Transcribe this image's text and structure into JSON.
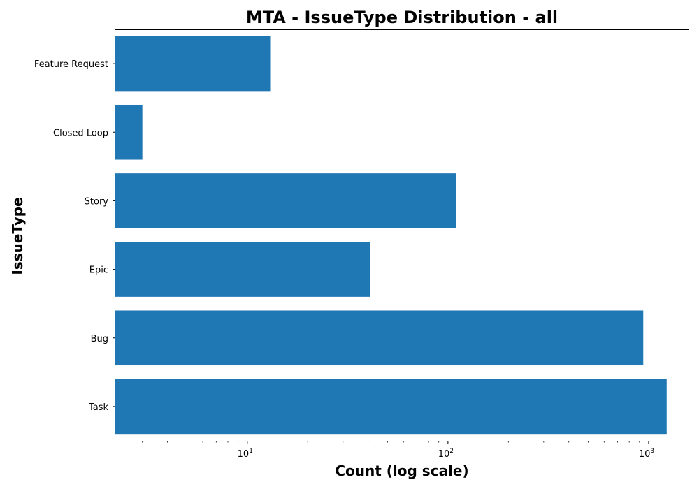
{
  "chart_data": {
    "type": "bar",
    "orientation": "horizontal",
    "title": "MTA - IssueType Distribution - all",
    "xlabel": "Count (log scale)",
    "ylabel": "IssueType",
    "xscale": "log",
    "xlim": [
      2.2,
      1580
    ],
    "categories": [
      "Task",
      "Bug",
      "Epic",
      "Story",
      "Closed Loop",
      "Feature Request"
    ],
    "values": [
      1230,
      940,
      41,
      110,
      3,
      13
    ],
    "x_ticks": [
      {
        "value": 10,
        "base": "10",
        "exp": "1"
      },
      {
        "value": 100,
        "base": "10",
        "exp": "2"
      },
      {
        "value": 1000,
        "base": "10",
        "exp": "3"
      }
    ],
    "grid": false,
    "legend": "none",
    "bar_color": "#1f77b4"
  }
}
